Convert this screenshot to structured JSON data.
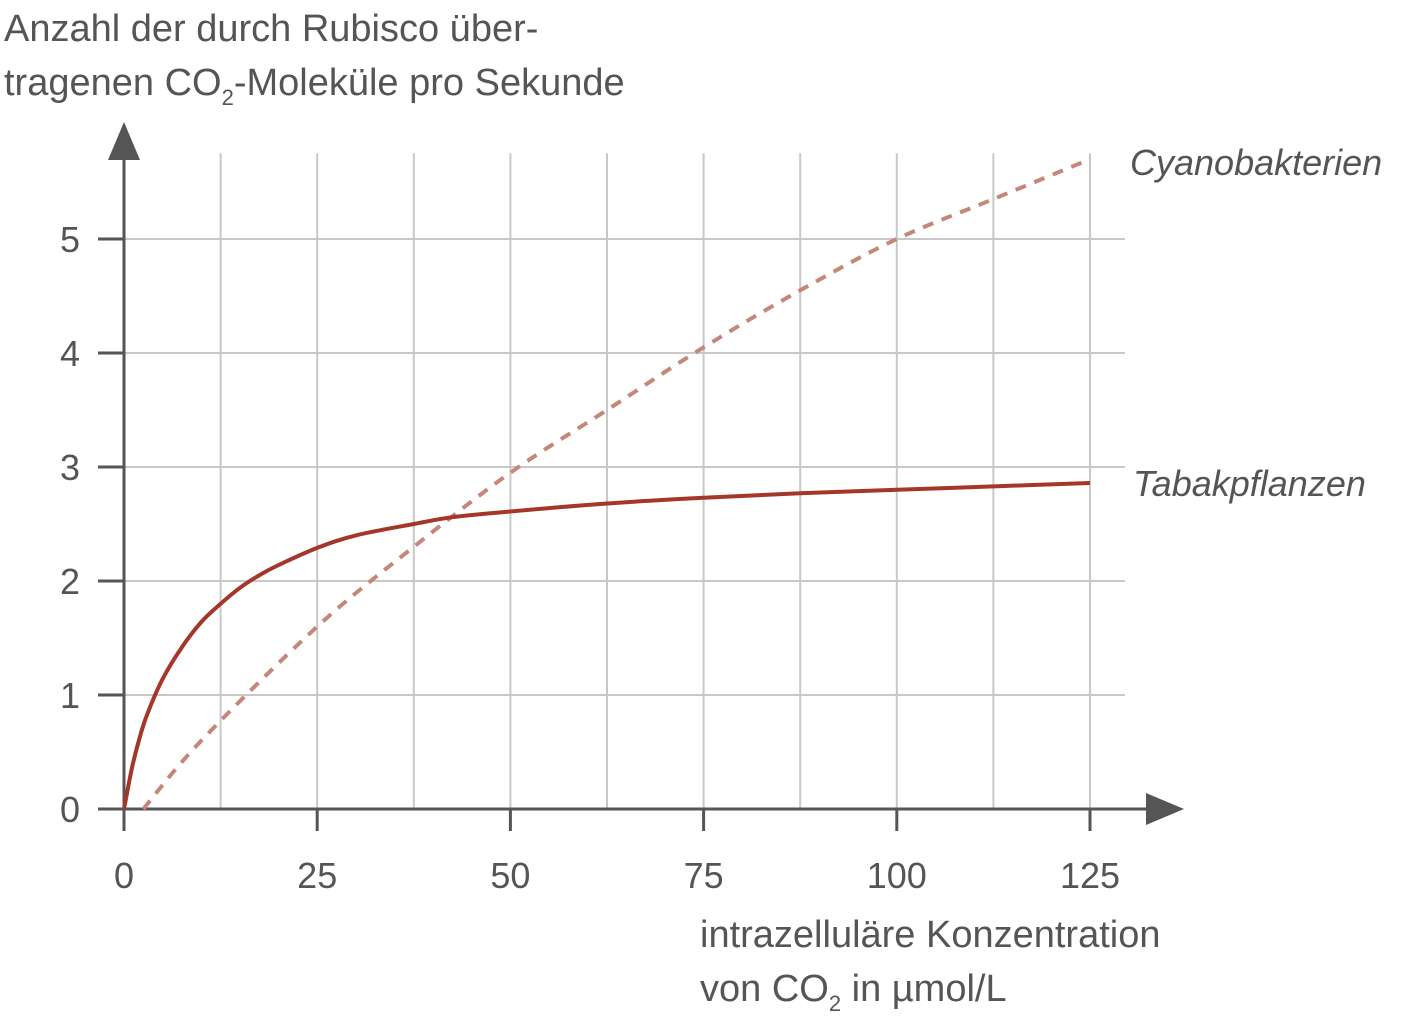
{
  "chart_data": {
    "type": "line",
    "title": "",
    "ylabel": {
      "line1": "Anzahl der durch Rubisco über-",
      "line2_pre": "tragenen CO",
      "line2_sub": "2",
      "line2_post": "-Moleküle pro Sekunde"
    },
    "xlabel": {
      "line1": "intrazelluläre Konzentration",
      "line2_pre": "von CO",
      "line2_sub": "2",
      "line2_post": " in µmol/L"
    },
    "xlim": [
      0,
      130
    ],
    "ylim": [
      0,
      5.9
    ],
    "x_ticks": [
      0,
      25,
      50,
      75,
      100,
      125
    ],
    "x_tick_labels": [
      "0",
      "25",
      "50",
      "75",
      "100",
      "125"
    ],
    "y_ticks": [
      0,
      1,
      2,
      3,
      4,
      5
    ],
    "y_tick_labels": [
      "0",
      "1",
      "2",
      "3",
      "4",
      "5"
    ],
    "grid": true,
    "series": [
      {
        "name": "Cyanobakterien",
        "style": "dashed",
        "color": "#c4877a",
        "x": [
          2.5,
          10,
          25,
          37.5,
          50,
          62.5,
          75,
          87.5,
          100,
          112.5,
          125
        ],
        "y": [
          0,
          0.6,
          1.6,
          2.3,
          2.95,
          3.5,
          4.05,
          4.55,
          5.0,
          5.35,
          5.7
        ]
      },
      {
        "name": "Tabakpflanzen",
        "style": "solid",
        "color": "#a5362a",
        "x": [
          0,
          1,
          2,
          3,
          5,
          7.5,
          10,
          12.5,
          15,
          17.5,
          20,
          25,
          30,
          37.5,
          42.5,
          50,
          62.5,
          75,
          87.5,
          100,
          112.5,
          125
        ],
        "y": [
          0,
          0.35,
          0.62,
          0.83,
          1.14,
          1.42,
          1.64,
          1.8,
          1.94,
          2.05,
          2.14,
          2.29,
          2.4,
          2.5,
          2.56,
          2.61,
          2.68,
          2.73,
          2.77,
          2.8,
          2.83,
          2.86
        ]
      }
    ],
    "colors": {
      "grid": "#c8c8c8",
      "axis": "#555555",
      "text": "#555555"
    }
  }
}
